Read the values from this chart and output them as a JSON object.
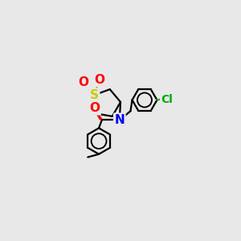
{
  "background_color": "#e8e8e8",
  "atom_colors": {
    "S": "#cccc00",
    "O": "#ff0000",
    "N": "#0000ff",
    "Cl": "#00aa00",
    "C": "#000000"
  },
  "bond_color": "#000000",
  "bond_width": 1.6
}
